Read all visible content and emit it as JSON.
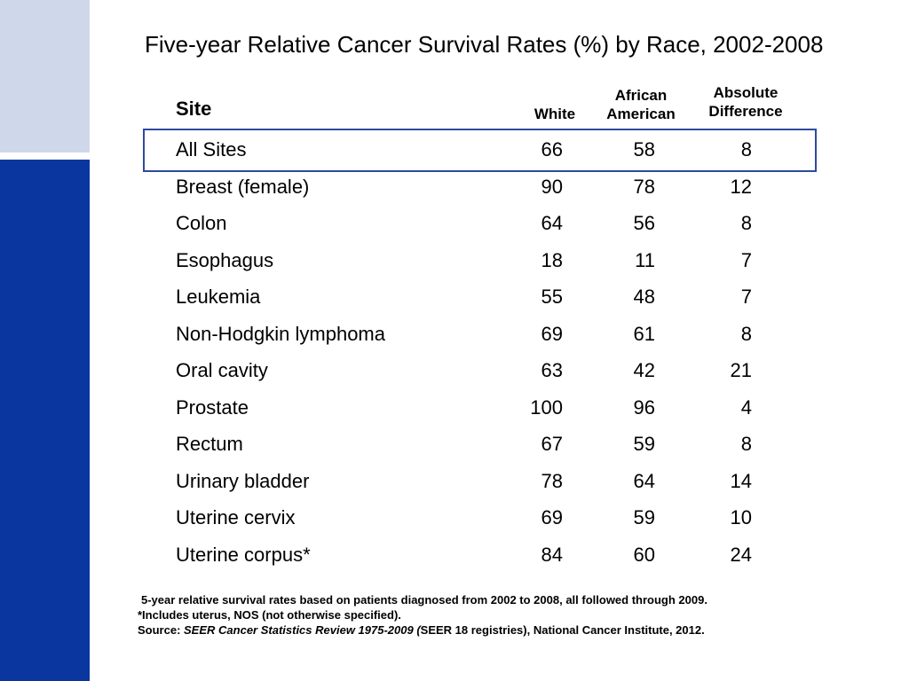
{
  "title": "Five-year Relative Cancer Survival Rates (%) by Race, 2002-2008",
  "headers": {
    "site": "Site",
    "white": "White",
    "african_american": "African American",
    "absolute_difference": "Absolute Difference"
  },
  "rows": [
    {
      "site": "All Sites",
      "white": "66",
      "african_american": "58",
      "absolute_difference": "8"
    },
    {
      "site": "Breast (female)",
      "white": "90",
      "african_american": "78",
      "absolute_difference": "12"
    },
    {
      "site": "Colon",
      "white": "64",
      "african_american": "56",
      "absolute_difference": "8"
    },
    {
      "site": "Esophagus",
      "white": "18",
      "african_american": "11",
      "absolute_difference": "7"
    },
    {
      "site": "Leukemia",
      "white": "55",
      "african_american": "48",
      "absolute_difference": "7"
    },
    {
      "site": "Non-Hodgkin lymphoma",
      "white": "69",
      "african_american": "61",
      "absolute_difference": "8"
    },
    {
      "site": "Oral cavity",
      "white": "63",
      "african_american": "42",
      "absolute_difference": "21"
    },
    {
      "site": "Prostate",
      "white": "100",
      "african_american": "96",
      "absolute_difference": "4"
    },
    {
      "site": "Rectum",
      "white": "67",
      "african_american": "59",
      "absolute_difference": "8"
    },
    {
      "site": "Urinary bladder",
      "white": "78",
      "african_american": "64",
      "absolute_difference": "14"
    },
    {
      "site": "Uterine cervix",
      "white": "69",
      "african_american": "59",
      "absolute_difference": "10"
    },
    {
      "site": "Uterine corpus*",
      "white": "84",
      "african_american": "60",
      "absolute_difference": "24"
    }
  ],
  "notes": {
    "line1": "5-year relative survival rates based on patients diagnosed from 2002 to 2008, all followed through 2009.",
    "line2": "*Includes uterus, NOS (not otherwise specified).",
    "source_prefix": "Source: ",
    "source_title": "SEER Cancer Statistics Review 1975-2009 (",
    "source_suffix": "SEER 18 registries), National Cancer Institute, 2012."
  },
  "colors": {
    "sidebar_light": "#cfd8eb",
    "sidebar_dark": "#0a36a0",
    "highlight_border": "#2d4aa0"
  }
}
